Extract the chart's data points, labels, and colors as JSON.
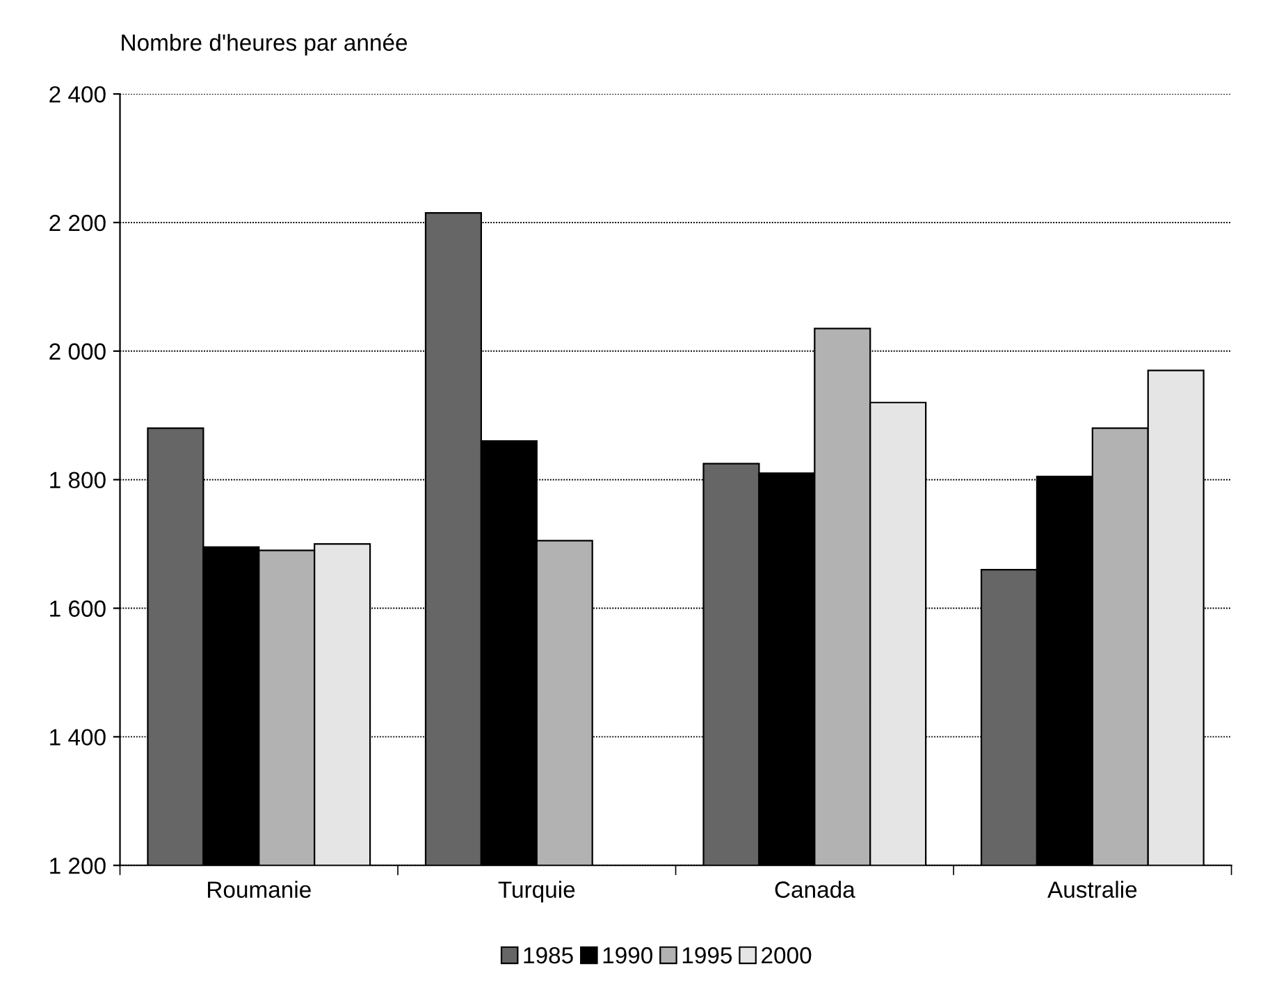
{
  "chart_data": {
    "type": "bar",
    "ylabel": "Nombre d'heures par année",
    "categories": [
      "Roumanie",
      "Turquie",
      "Canada",
      "Australie"
    ],
    "series": [
      {
        "name": "1985",
        "color": "#666666",
        "values": [
          1880,
          2215,
          1825,
          1660
        ]
      },
      {
        "name": "1990",
        "color": "#000000",
        "values": [
          1695,
          1860,
          1810,
          1805
        ]
      },
      {
        "name": "1995",
        "color": "#b2b2b2",
        "values": [
          1690,
          1705,
          2035,
          1880
        ]
      },
      {
        "name": "2000",
        "color": "#e5e5e5",
        "values": [
          1700,
          null,
          1920,
          1970
        ]
      }
    ],
    "ylim": [
      1200,
      2400
    ],
    "yticks": [
      {
        "value": 1200,
        "label": "1 200"
      },
      {
        "value": 1400,
        "label": "1 400"
      },
      {
        "value": 1600,
        "label": "1 600"
      },
      {
        "value": 1800,
        "label": "1 800"
      },
      {
        "value": 2000,
        "label": "2 000"
      },
      {
        "value": 2200,
        "label": "2 200"
      },
      {
        "value": 2400,
        "label": "2 400"
      }
    ],
    "grid": "y",
    "legend": "bottom"
  }
}
